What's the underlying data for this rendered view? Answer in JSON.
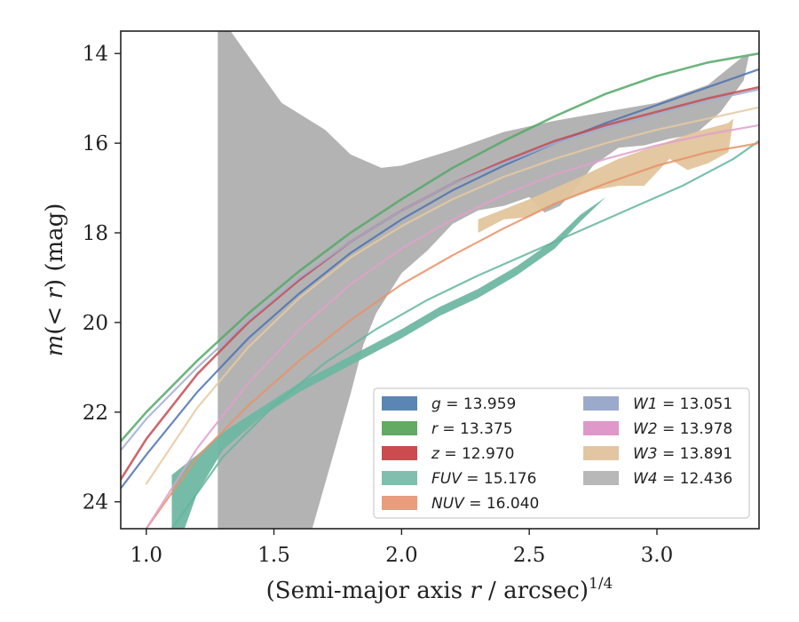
{
  "chart_data": {
    "type": "line",
    "xlabel_main": "(Semi-major axis ",
    "xlabel_var": "r",
    "xlabel_unit": " / arcsec)",
    "xlabel_exp": "1/4",
    "ylabel_pre": "m",
    "ylabel_mid": "(< ",
    "ylabel_var": "r",
    "ylabel_post": ") (mag)",
    "xlim": [
      0.9,
      3.4
    ],
    "ylim": [
      24.6,
      13.5
    ],
    "x_ticks": [
      1.0,
      1.5,
      2.0,
      2.5,
      3.0
    ],
    "x_tick_labels": [
      "1.0",
      "1.5",
      "2.0",
      "2.5",
      "3.0"
    ],
    "y_ticks": [
      14,
      16,
      18,
      20,
      22,
      24
    ],
    "y_tick_labels": [
      "14",
      "16",
      "18",
      "20",
      "22",
      "24"
    ],
    "legend_position": "lower-right",
    "series": [
      {
        "key": "g",
        "name": "g",
        "value": "13.959",
        "color": "#4c72b0",
        "points": [
          [
            0.9,
            23.7
          ],
          [
            1.0,
            22.95
          ],
          [
            1.2,
            21.55
          ],
          [
            1.4,
            20.35
          ],
          [
            1.6,
            19.35
          ],
          [
            1.8,
            18.45
          ],
          [
            2.0,
            17.7
          ],
          [
            2.2,
            17.05
          ],
          [
            2.4,
            16.5
          ],
          [
            2.6,
            16.0
          ],
          [
            2.8,
            15.55
          ],
          [
            3.0,
            15.15
          ],
          [
            3.2,
            14.75
          ],
          [
            3.4,
            14.35
          ]
        ],
        "width": 2.2
      },
      {
        "key": "r",
        "name": "r",
        "value": "13.375",
        "color": "#55a868",
        "points": [
          [
            0.9,
            22.65
          ],
          [
            1.0,
            22.0
          ],
          [
            1.2,
            20.85
          ],
          [
            1.4,
            19.8
          ],
          [
            1.6,
            18.85
          ],
          [
            1.8,
            18.0
          ],
          [
            2.0,
            17.25
          ],
          [
            2.2,
            16.55
          ],
          [
            2.4,
            15.95
          ],
          [
            2.6,
            15.4
          ],
          [
            2.8,
            14.9
          ],
          [
            3.0,
            14.5
          ],
          [
            3.2,
            14.2
          ],
          [
            3.4,
            14.0
          ]
        ],
        "width": 2.6
      },
      {
        "key": "z",
        "name": "z",
        "value": "12.970",
        "color": "#c44e52",
        "points": [
          [
            0.9,
            23.5
          ],
          [
            1.0,
            22.6
          ],
          [
            1.2,
            21.15
          ],
          [
            1.4,
            20.0
          ],
          [
            1.6,
            19.05
          ],
          [
            1.8,
            18.2
          ],
          [
            2.0,
            17.5
          ],
          [
            2.2,
            16.9
          ],
          [
            2.4,
            16.4
          ],
          [
            2.6,
            15.95
          ],
          [
            2.8,
            15.6
          ],
          [
            3.0,
            15.3
          ],
          [
            3.2,
            15.0
          ],
          [
            3.4,
            14.75
          ]
        ],
        "width": 2.6
      },
      {
        "key": "FUV",
        "name": "FUV",
        "value": "15.176",
        "color": "#64b5a0",
        "points": [
          [
            1.1,
            24.6
          ],
          [
            1.3,
            23.0
          ],
          [
            1.5,
            21.85
          ],
          [
            1.7,
            20.9
          ],
          [
            1.9,
            20.15
          ],
          [
            2.1,
            19.5
          ],
          [
            2.3,
            18.95
          ],
          [
            2.5,
            18.45
          ],
          [
            2.7,
            17.95
          ],
          [
            2.9,
            17.45
          ],
          [
            3.1,
            16.95
          ],
          [
            3.3,
            16.35
          ],
          [
            3.4,
            15.95
          ]
        ],
        "width": 2.2
      },
      {
        "key": "NUV",
        "name": "NUV",
        "value": "16.040",
        "color": "#e8926a",
        "points": [
          [
            1.0,
            24.6
          ],
          [
            1.2,
            23.0
          ],
          [
            1.4,
            21.85
          ],
          [
            1.6,
            20.85
          ],
          [
            1.8,
            19.95
          ],
          [
            2.0,
            19.15
          ],
          [
            2.2,
            18.5
          ],
          [
            2.4,
            17.9
          ],
          [
            2.6,
            17.35
          ],
          [
            2.8,
            16.9
          ],
          [
            3.0,
            16.5
          ],
          [
            3.2,
            16.2
          ],
          [
            3.4,
            16.0
          ]
        ],
        "width": 2.2
      },
      {
        "key": "W1",
        "name": "W1",
        "value": "13.051",
        "color": "#a0aed0",
        "points": [
          [
            0.9,
            22.85
          ],
          [
            1.0,
            22.15
          ],
          [
            1.2,
            21.0
          ],
          [
            1.4,
            19.95
          ],
          [
            1.6,
            19.0
          ],
          [
            1.8,
            18.2
          ],
          [
            2.0,
            17.5
          ],
          [
            2.2,
            16.9
          ],
          [
            2.4,
            16.45
          ],
          [
            2.6,
            16.0
          ],
          [
            2.8,
            15.65
          ],
          [
            3.0,
            15.35
          ],
          [
            3.2,
            15.05
          ],
          [
            3.4,
            14.8
          ]
        ],
        "width": 2.2
      },
      {
        "key": "W2",
        "name": "W2",
        "value": "13.978",
        "color": "#e0a0cc",
        "points": [
          [
            1.0,
            24.6
          ],
          [
            1.2,
            22.8
          ],
          [
            1.4,
            21.35
          ],
          [
            1.6,
            20.15
          ],
          [
            1.8,
            19.15
          ],
          [
            2.0,
            18.35
          ],
          [
            2.2,
            17.7
          ],
          [
            2.4,
            17.15
          ],
          [
            2.6,
            16.7
          ],
          [
            2.8,
            16.35
          ],
          [
            3.0,
            16.05
          ],
          [
            3.2,
            15.8
          ],
          [
            3.4,
            15.6
          ]
        ],
        "width": 2.2
      },
      {
        "key": "W3",
        "name": "W3",
        "value": "13.891",
        "color": "#e6c9a0",
        "points": [
          [
            1.0,
            23.6
          ],
          [
            1.2,
            21.9
          ],
          [
            1.4,
            20.55
          ],
          [
            1.6,
            19.45
          ],
          [
            1.8,
            18.55
          ],
          [
            2.0,
            17.85
          ],
          [
            2.2,
            17.25
          ],
          [
            2.4,
            16.75
          ],
          [
            2.6,
            16.35
          ],
          [
            2.8,
            16.0
          ],
          [
            3.0,
            15.7
          ],
          [
            3.2,
            15.45
          ],
          [
            3.4,
            15.2
          ]
        ],
        "width": 2.2
      },
      {
        "key": "W4",
        "name": "W4",
        "value": "12.436",
        "color": "#a9a9a9",
        "points": [],
        "width": 0
      }
    ],
    "bands": [
      {
        "key": "W4",
        "color": "#b3b3b3",
        "upper": [
          [
            1.28,
            13.5
          ],
          [
            1.33,
            13.5
          ],
          [
            1.43,
            14.3
          ],
          [
            1.53,
            15.1
          ],
          [
            1.7,
            15.7
          ],
          [
            1.8,
            16.25
          ],
          [
            1.92,
            16.55
          ],
          [
            2.0,
            16.5
          ],
          [
            2.2,
            16.15
          ],
          [
            2.4,
            15.75
          ],
          [
            2.6,
            15.5
          ],
          [
            2.8,
            15.3
          ],
          [
            3.0,
            15.1
          ],
          [
            3.2,
            14.7
          ],
          [
            3.33,
            14.1
          ],
          [
            3.36,
            14.05
          ]
        ],
        "lower": [
          [
            3.36,
            14.05
          ],
          [
            3.34,
            14.6
          ],
          [
            3.25,
            15.3
          ],
          [
            3.15,
            15.8
          ],
          [
            3.05,
            15.9
          ],
          [
            2.95,
            16.05
          ],
          [
            2.85,
            16.1
          ],
          [
            2.75,
            16.5
          ],
          [
            2.67,
            17.1
          ],
          [
            2.62,
            17.4
          ],
          [
            2.56,
            17.55
          ],
          [
            2.5,
            17.2
          ],
          [
            2.4,
            17.4
          ],
          [
            2.3,
            17.5
          ],
          [
            2.2,
            17.8
          ],
          [
            2.1,
            18.4
          ],
          [
            2.0,
            18.9
          ],
          [
            1.9,
            19.8
          ],
          [
            1.85,
            20.5
          ],
          [
            1.8,
            21.6
          ],
          [
            1.75,
            22.6
          ],
          [
            1.7,
            23.6
          ],
          [
            1.65,
            24.6
          ],
          [
            1.28,
            24.6
          ]
        ]
      },
      {
        "key": "W3",
        "color": "#e2c59c",
        "upper": [
          [
            2.3,
            17.7
          ],
          [
            2.5,
            17.25
          ],
          [
            2.7,
            16.75
          ],
          [
            2.85,
            16.35
          ],
          [
            3.0,
            16.05
          ],
          [
            3.15,
            15.75
          ],
          [
            3.28,
            15.55
          ],
          [
            3.3,
            15.45
          ]
        ],
        "lower": [
          [
            3.3,
            15.45
          ],
          [
            3.28,
            16.2
          ],
          [
            3.2,
            16.45
          ],
          [
            3.12,
            16.6
          ],
          [
            3.05,
            16.35
          ],
          [
            2.95,
            16.95
          ],
          [
            2.85,
            16.95
          ],
          [
            2.75,
            17.05
          ],
          [
            2.6,
            17.35
          ],
          [
            2.5,
            17.65
          ],
          [
            2.4,
            17.7
          ],
          [
            2.3,
            18.0
          ]
        ]
      },
      {
        "key": "FUV",
        "color": "#6fb7a2",
        "upper": [
          [
            1.1,
            23.4
          ],
          [
            1.2,
            22.95
          ],
          [
            1.3,
            22.45
          ],
          [
            1.45,
            21.9
          ],
          [
            1.6,
            21.35
          ],
          [
            1.8,
            20.75
          ],
          [
            2.0,
            20.15
          ],
          [
            2.15,
            19.65
          ],
          [
            2.3,
            19.25
          ],
          [
            2.45,
            18.75
          ],
          [
            2.6,
            18.15
          ],
          [
            2.7,
            17.6
          ],
          [
            2.8,
            17.2
          ]
        ],
        "lower": [
          [
            2.8,
            17.2
          ],
          [
            2.7,
            17.75
          ],
          [
            2.6,
            18.35
          ],
          [
            2.45,
            18.95
          ],
          [
            2.3,
            19.45
          ],
          [
            2.15,
            19.85
          ],
          [
            2.0,
            20.35
          ],
          [
            1.8,
            20.95
          ],
          [
            1.6,
            21.55
          ],
          [
            1.45,
            22.1
          ],
          [
            1.3,
            22.85
          ],
          [
            1.2,
            23.8
          ],
          [
            1.15,
            24.6
          ],
          [
            1.1,
            24.6
          ]
        ]
      }
    ],
    "legend": {
      "left": [
        {
          "key": "g",
          "label": "g = 13.959",
          "color": "#5a85b5"
        },
        {
          "key": "r",
          "label": "r = 13.375",
          "color": "#63aa63"
        },
        {
          "key": "z",
          "label": "z = 12.970",
          "color": "#cc4b4e"
        },
        {
          "key": "FUV",
          "label": "FUV = 15.176",
          "color": "#82bead"
        },
        {
          "key": "NUV",
          "label": "NUV = 16.040",
          "color": "#e99d7e"
        }
      ],
      "right": [
        {
          "key": "W1",
          "label": "W1 = 13.051",
          "color": "#9ba9cb"
        },
        {
          "key": "W2",
          "label": "W2 = 13.978",
          "color": "#de98c9"
        },
        {
          "key": "W3",
          "label": "W3 = 13.891",
          "color": "#e2c6a1"
        },
        {
          "key": "W4",
          "label": "W4 = 12.436",
          "color": "#b8b8b8"
        }
      ]
    }
  }
}
